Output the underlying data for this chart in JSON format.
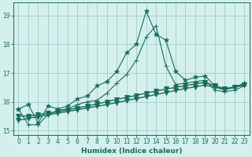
{
  "xlabel": "Humidex (Indice chaleur)",
  "bg_color": "#d4f0ec",
  "grid_color": "#a0cccc",
  "line_color": "#1a6b5a",
  "xlim": [
    -0.5,
    23.5
  ],
  "ylim": [
    14.85,
    19.45
  ],
  "yticks": [
    15,
    16,
    17,
    18,
    19
  ],
  "xticks": [
    0,
    1,
    2,
    3,
    4,
    5,
    6,
    7,
    8,
    9,
    10,
    11,
    12,
    13,
    14,
    15,
    16,
    17,
    18,
    19,
    20,
    21,
    22,
    23
  ],
  "series": [
    {
      "x": [
        0,
        1,
        2,
        3,
        4,
        5,
        6,
        7,
        8,
        9,
        10,
        11,
        12,
        13,
        14,
        15,
        16,
        17,
        18,
        19,
        20,
        21,
        22,
        23
      ],
      "y": [
        15.75,
        15.9,
        15.25,
        15.85,
        15.75,
        15.85,
        16.1,
        16.2,
        16.55,
        16.7,
        17.05,
        17.7,
        18.0,
        19.15,
        18.35,
        18.15,
        17.05,
        16.75,
        16.85,
        16.9,
        16.55,
        16.45,
        16.5,
        16.65
      ],
      "marker": "*",
      "ms": 4,
      "lw": 0.8
    },
    {
      "x": [
        0,
        1,
        2,
        3,
        4,
        5,
        6,
        7,
        8,
        9,
        10,
        11,
        12,
        13,
        14,
        15,
        16,
        17,
        18,
        19,
        20,
        21,
        22,
        23
      ],
      "y": [
        15.75,
        15.2,
        15.2,
        15.55,
        15.7,
        15.75,
        15.9,
        16.0,
        16.05,
        16.3,
        16.65,
        16.95,
        17.45,
        18.25,
        18.65,
        17.25,
        16.6,
        16.65,
        16.7,
        16.75,
        16.4,
        16.35,
        16.4,
        16.55
      ],
      "marker": "+",
      "ms": 4,
      "lw": 0.8
    },
    {
      "x": [
        0,
        1,
        2,
        3,
        4,
        5,
        6,
        7,
        8,
        9,
        10,
        11,
        12,
        13,
        14,
        15,
        16,
        17,
        18,
        19,
        20,
        21,
        22,
        23
      ],
      "y": [
        15.5,
        15.5,
        15.55,
        15.6,
        15.65,
        15.72,
        15.78,
        15.85,
        15.92,
        16.0,
        16.08,
        16.15,
        16.22,
        16.3,
        16.37,
        16.44,
        16.5,
        16.56,
        16.62,
        16.68,
        16.55,
        16.45,
        16.52,
        16.6
      ],
      "marker": "v",
      "ms": 4,
      "lw": 1.0
    },
    {
      "x": [
        0,
        1,
        2,
        3,
        4,
        5,
        6,
        7,
        8,
        9,
        10,
        11,
        12,
        13,
        14,
        15,
        16,
        17,
        18,
        19,
        20,
        21,
        22,
        23
      ],
      "y": [
        15.35,
        15.42,
        15.48,
        15.54,
        15.6,
        15.66,
        15.72,
        15.78,
        15.84,
        15.9,
        15.97,
        16.04,
        16.11,
        16.18,
        16.25,
        16.32,
        16.39,
        16.46,
        16.52,
        16.58,
        16.5,
        16.42,
        16.5,
        16.58
      ],
      "marker": "v",
      "ms": 4,
      "lw": 1.0
    }
  ]
}
